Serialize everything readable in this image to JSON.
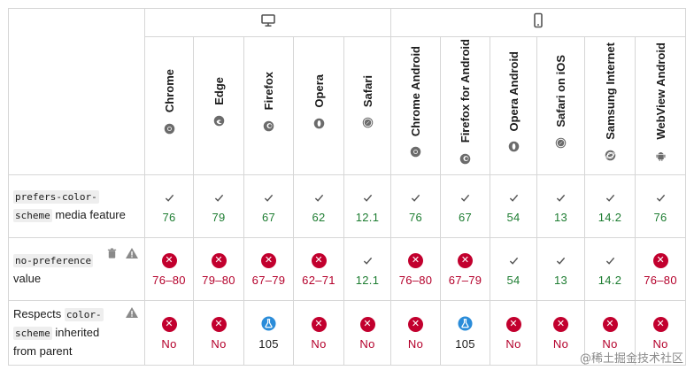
{
  "platforms": {
    "desktop_icon": "desktop-icon",
    "mobile_icon": "mobile-phone-icon"
  },
  "browsers": [
    {
      "name": "Chrome",
      "icon": "chrome-icon"
    },
    {
      "name": "Edge",
      "icon": "edge-icon"
    },
    {
      "name": "Firefox",
      "icon": "firefox-icon"
    },
    {
      "name": "Opera",
      "icon": "opera-icon"
    },
    {
      "name": "Safari",
      "icon": "safari-icon"
    },
    {
      "name": "Chrome Android",
      "icon": "chrome-icon"
    },
    {
      "name": "Firefox for Android",
      "icon": "firefox-icon"
    },
    {
      "name": "Opera Android",
      "icon": "opera-icon"
    },
    {
      "name": "Safari on iOS",
      "icon": "safari-icon"
    },
    {
      "name": "Samsung Internet",
      "icon": "samsung-internet-icon"
    },
    {
      "name": "WebView Android",
      "icon": "android-icon"
    }
  ],
  "features": [
    {
      "code": "prefers-color-scheme",
      "text": "media feature",
      "code_line1": "prefers-color-",
      "code_line2": "scheme",
      "support": [
        {
          "status": "yes",
          "version": "76"
        },
        {
          "status": "yes",
          "version": "79"
        },
        {
          "status": "yes",
          "version": "67"
        },
        {
          "status": "yes",
          "version": "62"
        },
        {
          "status": "yes",
          "version": "12.1"
        },
        {
          "status": "yes",
          "version": "76"
        },
        {
          "status": "yes",
          "version": "67"
        },
        {
          "status": "yes",
          "version": "54"
        },
        {
          "status": "yes",
          "version": "13"
        },
        {
          "status": "yes",
          "version": "14.2"
        },
        {
          "status": "yes",
          "version": "76"
        }
      ]
    },
    {
      "code": "no-preference",
      "text": "value",
      "icons": [
        "trash-icon",
        "warning-icon"
      ],
      "support": [
        {
          "status": "no",
          "version": "76–80"
        },
        {
          "status": "no",
          "version": "79–80"
        },
        {
          "status": "no",
          "version": "67–79"
        },
        {
          "status": "no",
          "version": "62–71"
        },
        {
          "status": "yes",
          "version": "12.1"
        },
        {
          "status": "no",
          "version": "76–80"
        },
        {
          "status": "no",
          "version": "67–79"
        },
        {
          "status": "yes",
          "version": "54"
        },
        {
          "status": "yes",
          "version": "13"
        },
        {
          "status": "yes",
          "version": "14.2"
        },
        {
          "status": "no",
          "version": "76–80"
        }
      ]
    },
    {
      "text_before": "Respects",
      "code_line1": "color-",
      "code_line2": "scheme",
      "text_after": "inherited",
      "text_last": "from parent",
      "icons": [
        "warning-icon"
      ],
      "support": [
        {
          "status": "no",
          "version": "No"
        },
        {
          "status": "no",
          "version": "No"
        },
        {
          "status": "flag",
          "version": "105"
        },
        {
          "status": "no",
          "version": "No"
        },
        {
          "status": "no",
          "version": "No"
        },
        {
          "status": "no",
          "version": "No"
        },
        {
          "status": "flag",
          "version": "105"
        },
        {
          "status": "no",
          "version": "No"
        },
        {
          "status": "no",
          "version": "No"
        },
        {
          "status": "no",
          "version": "No"
        },
        {
          "status": "no",
          "version": "No"
        }
      ]
    }
  ],
  "watermark": "@稀土掘金技术社区"
}
